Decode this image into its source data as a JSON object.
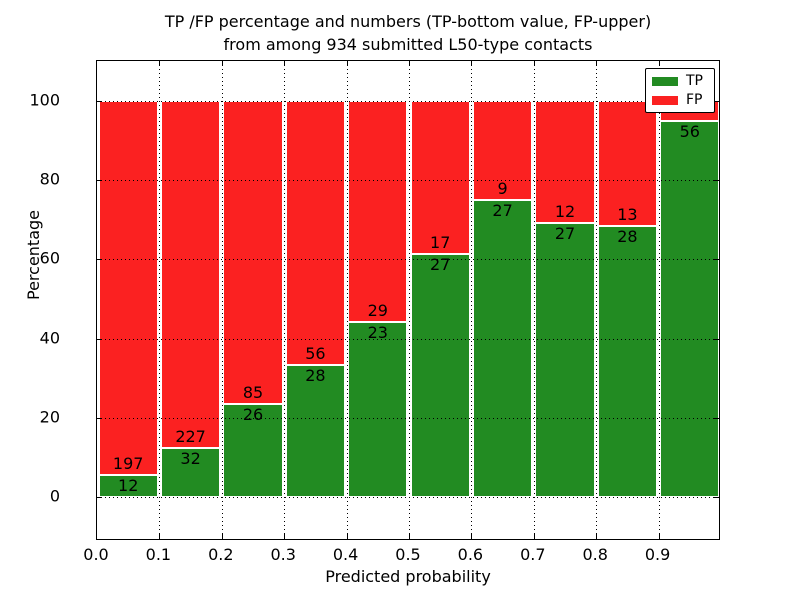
{
  "title": {
    "line1": "TP /FP percentage and numbers (TP-bottom value, FP-upper)",
    "line2": "from among 934 submitted L50-type contacts"
  },
  "legend": {
    "position": "upper right",
    "entries": [
      {
        "label": "TP",
        "color": "#228b22"
      },
      {
        "label": "FP",
        "color": "#fb2121"
      }
    ]
  },
  "chart_data": {
    "type": "bar",
    "stacked": true,
    "normalized_to_percent": true,
    "title": "TP /FP percentage and numbers (TP-bottom value, FP-upper) from among 934 submitted L50-type contacts",
    "xlabel": "Predicted probability",
    "ylabel": "Percentage",
    "x_tick_labels": [
      "0.0",
      "0.1",
      "0.2",
      "0.3",
      "0.4",
      "0.5",
      "0.6",
      "0.7",
      "0.8",
      "0.9"
    ],
    "y_tick_labels": [
      "0",
      "20",
      "40",
      "60",
      "80",
      "100"
    ],
    "y_tick_values": [
      0,
      20,
      40,
      60,
      80,
      100
    ],
    "xlim": [
      0.0,
      1.0
    ],
    "ylim": [
      -11,
      110
    ],
    "grid": "dotted black, horizontal at y ticks and vertical at bin edges, drawn above bars",
    "colors": {
      "tp": "#228b22",
      "fp": "#fb2121",
      "bar_edge": "#ffffff"
    },
    "total_contacts": 934,
    "bins": [
      {
        "x0": 0.0,
        "x1": 0.1,
        "tp_pct": 5.74,
        "tp_label": "12",
        "fp_label": "197"
      },
      {
        "x0": 0.1,
        "x1": 0.2,
        "tp_pct": 12.36,
        "tp_label": "32",
        "fp_label": "227"
      },
      {
        "x0": 0.2,
        "x1": 0.3,
        "tp_pct": 23.42,
        "tp_label": "26",
        "fp_label": "85"
      },
      {
        "x0": 0.3,
        "x1": 0.4,
        "tp_pct": 33.33,
        "tp_label": "28",
        "fp_label": "56"
      },
      {
        "x0": 0.4,
        "x1": 0.5,
        "tp_pct": 44.23,
        "tp_label": "23",
        "fp_label": "29"
      },
      {
        "x0": 0.5,
        "x1": 0.6,
        "tp_pct": 61.36,
        "tp_label": "27",
        "fp_label": "17"
      },
      {
        "x0": 0.6,
        "x1": 0.7,
        "tp_pct": 75.0,
        "tp_label": "27",
        "fp_label": "9"
      },
      {
        "x0": 0.7,
        "x1": 0.8,
        "tp_pct": 69.23,
        "tp_label": "27",
        "fp_label": "12"
      },
      {
        "x0": 0.8,
        "x1": 0.9,
        "tp_pct": 68.29,
        "tp_label": "28",
        "fp_label": "13"
      },
      {
        "x0": 0.9,
        "x1": 1.0,
        "tp_pct": 94.92,
        "tp_label": "56",
        "fp_label": null
      }
    ]
  }
}
